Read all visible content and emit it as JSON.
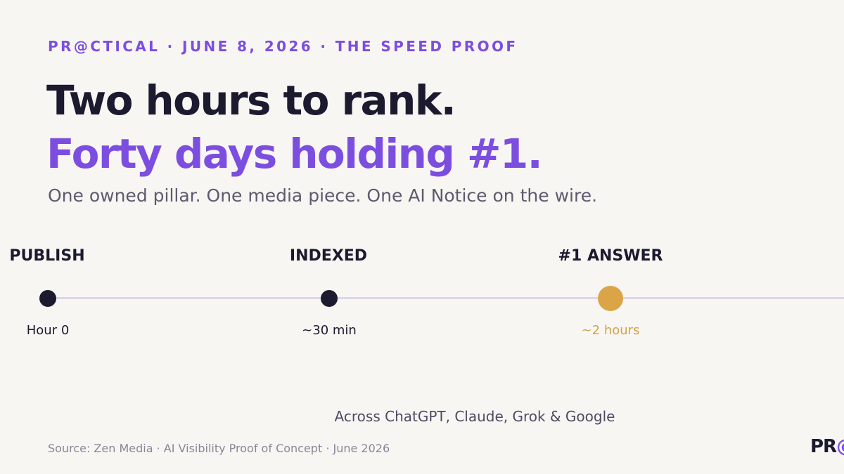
{
  "kicker": "PR@CTICAL · JUNE 8, 2026 · THE SPEED PROOF",
  "headline": {
    "line1": "Two hours to rank.",
    "line2": "Forty days holding #1."
  },
  "subhead": "One owned pillar. One media piece. One AI Notice on the wire.",
  "timeline": [
    {
      "label": "PUBLISH",
      "time": "Hour 0"
    },
    {
      "label": "INDEXED",
      "time": "~30 min"
    },
    {
      "label": "#1 ANSWER",
      "time": "~2 hours"
    }
  ],
  "across": "Across ChatGPT, Claude, Grok & Google",
  "source": "Source: Zen Media · AI Visibility Proof of Concept · June 2026",
  "logo": {
    "pr": "PR",
    "at": "@"
  },
  "colors": {
    "accent": "#7c4ee0",
    "highlight": "#dba547",
    "dark": "#1c1a2e",
    "background": "#f8f6f3",
    "line": "#ddd6ea"
  }
}
